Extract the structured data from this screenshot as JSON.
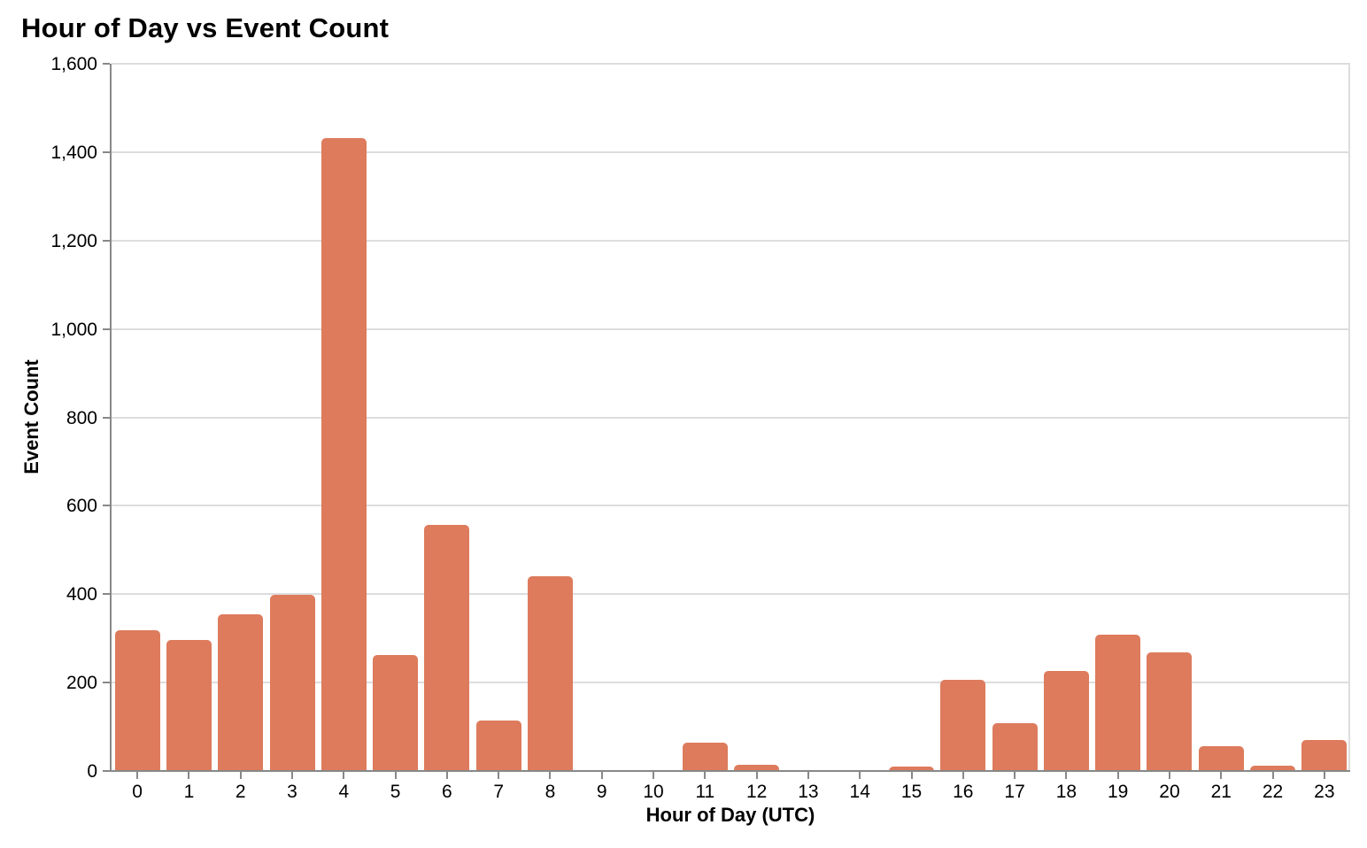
{
  "page": {
    "background": "#ffffff"
  },
  "chart_data": {
    "type": "bar",
    "title": "Hour of Day vs Event Count",
    "xlabel": "Hour of Day (UTC)",
    "ylabel": "Event Count",
    "categories": [
      "0",
      "1",
      "2",
      "3",
      "4",
      "5",
      "6",
      "7",
      "8",
      "9",
      "10",
      "11",
      "12",
      "13",
      "14",
      "15",
      "16",
      "17",
      "18",
      "19",
      "20",
      "21",
      "22",
      "23"
    ],
    "values": [
      318,
      297,
      355,
      398,
      1432,
      263,
      557,
      114,
      441,
      0,
      0,
      64,
      14,
      0,
      0,
      11,
      206,
      109,
      226,
      309,
      268,
      57,
      12,
      70
    ],
    "ylim": [
      0,
      1600
    ],
    "y_tick_step": 200,
    "y_tick_labels": [
      "0",
      "200",
      "400",
      "600",
      "800",
      "1,000",
      "1,200",
      "1,400",
      "1,600"
    ],
    "grid": true,
    "legend": false,
    "colors": {
      "bar": "#DD7B5C",
      "gridline": "#DDDDDD",
      "axis": "#888888",
      "text": "#000000"
    }
  }
}
